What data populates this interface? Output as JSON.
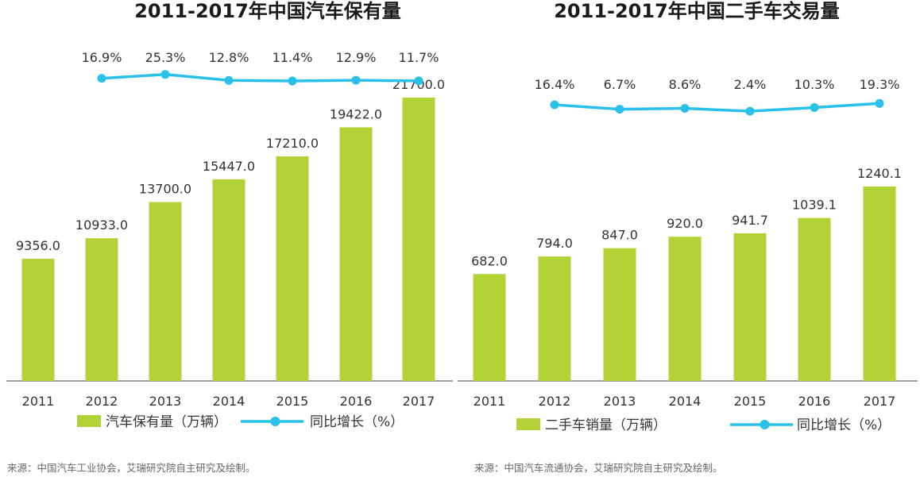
{
  "chart_data": [
    {
      "type": "bar",
      "title": "2011-2017年中国汽车保有量",
      "categories": [
        "2011",
        "2012",
        "2013",
        "2014",
        "2015",
        "2016",
        "2017"
      ],
      "series": [
        {
          "name": "汽车保有量（万辆）",
          "type": "bar",
          "values": [
            9356.0,
            10933.0,
            13700.0,
            15447.0,
            17210.0,
            19422.0,
            21700.0
          ],
          "labels": [
            "9356.0",
            "10933.0",
            "13700.0",
            "15447.0",
            "17210.0",
            "19422.0",
            "21700.0"
          ]
        },
        {
          "name": "同比增长（%）",
          "type": "line",
          "values": [
            16.9,
            25.3,
            12.8,
            11.4,
            12.9,
            11.7
          ],
          "x": [
            "2012",
            "2013",
            "2014",
            "2015",
            "2016",
            "2017"
          ],
          "labels": [
            "16.9%",
            "25.3%",
            "12.8%",
            "11.4%",
            "12.9%",
            "11.7%"
          ]
        }
      ],
      "xlabel": "",
      "ylabel": "",
      "ylim": [
        0,
        23000
      ],
      "grid": false,
      "legend": "bottom",
      "source": "来源：中国汽车工业协会，艾瑞研究院自主研究及绘制。"
    },
    {
      "type": "bar",
      "title": "2011-2017年中国二手车交易量",
      "categories": [
        "2011",
        "2012",
        "2013",
        "2014",
        "2015",
        "2016",
        "2017"
      ],
      "series": [
        {
          "name": "二手车销量（万辆）",
          "type": "bar",
          "values": [
            682.0,
            794.0,
            847.0,
            920.0,
            941.7,
            1039.1,
            1240.1
          ],
          "labels": [
            "682.0",
            "794.0",
            "847.0",
            "920.0",
            "941.7",
            "1039.1",
            "1240.1"
          ]
        },
        {
          "name": "同比增长（%）",
          "type": "line",
          "values": [
            16.4,
            6.7,
            8.6,
            2.4,
            10.3,
            19.3
          ],
          "x": [
            "2012",
            "2013",
            "2014",
            "2015",
            "2016",
            "2017"
          ],
          "labels": [
            "16.4%",
            "6.7%",
            "8.6%",
            "2.4%",
            "10.3%",
            "19.3%"
          ]
        }
      ],
      "xlabel": "",
      "ylabel": "",
      "ylim": [
        0,
        2000
      ],
      "grid": false,
      "legend": "bottom",
      "source": "来源：中国汽车流通协会，艾瑞研究院自主研究及绘制。"
    }
  ],
  "colors": {
    "bar": "#b2d235",
    "line": "#29c1ea",
    "axis": "#7f7f7f",
    "title": "#1a1a1a",
    "text": "#333333",
    "source": "#666666"
  }
}
